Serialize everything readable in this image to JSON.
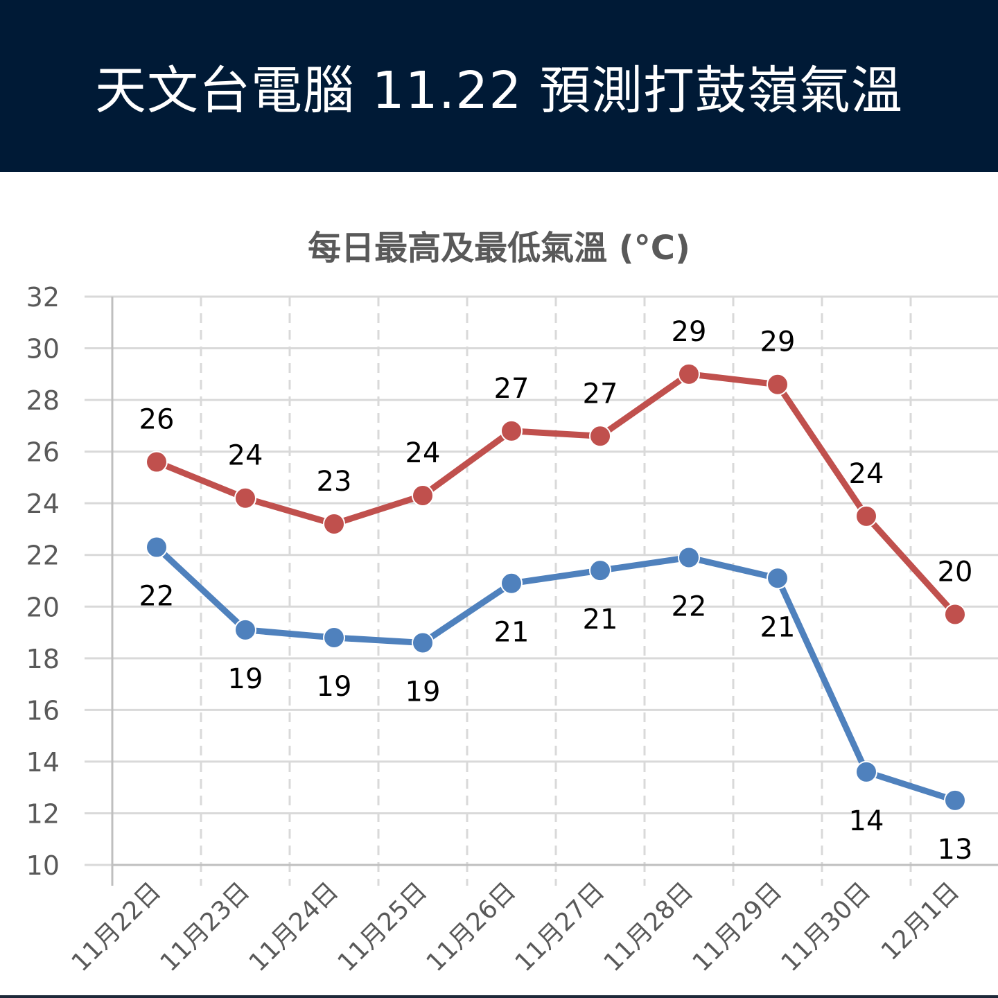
{
  "header": {
    "title": "天文台電腦 11.22 預測打鼓嶺氣溫"
  },
  "colors": {
    "header_bg": "#001a36",
    "high": "#c0504d",
    "low": "#4f81bd"
  },
  "chart_data": {
    "type": "line",
    "title": "每日最高及最低氣溫 (°C)",
    "categories": [
      "11月22日",
      "11月23日",
      "11月24日",
      "11月25日",
      "11月26日",
      "11月27日",
      "11月28日",
      "11月29日",
      "11月30日",
      "12月1日"
    ],
    "series": [
      {
        "color": "#c0504d",
        "values": [
          25.6,
          24.2,
          23.2,
          24.3,
          26.8,
          26.6,
          29.0,
          28.6,
          23.5,
          19.7
        ],
        "labels": [
          "26",
          "24",
          "23",
          "24",
          "27",
          "27",
          "29",
          "29",
          "24",
          "20"
        ],
        "label_position": "above"
      },
      {
        "color": "#4f81bd",
        "values": [
          22.3,
          19.1,
          18.8,
          18.6,
          20.9,
          21.4,
          21.9,
          21.1,
          13.6,
          12.5
        ],
        "labels": [
          "22",
          "19",
          "19",
          "19",
          "21",
          "21",
          "22",
          "21",
          "14",
          "13"
        ],
        "label_position": "below"
      }
    ],
    "ylim": [
      10,
      32
    ],
    "yticks": [
      "10",
      "12",
      "14",
      "16",
      "18",
      "20",
      "22",
      "24",
      "26",
      "28",
      "30",
      "32"
    ],
    "grid": true,
    "legend": "none"
  }
}
